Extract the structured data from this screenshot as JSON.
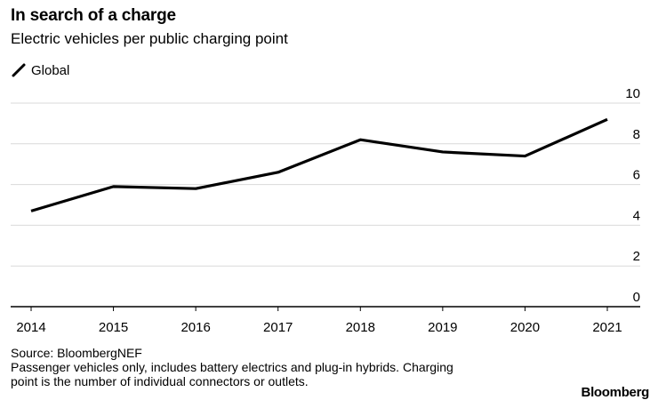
{
  "chart_data": {
    "type": "line",
    "title": "In search of a charge",
    "subtitle": "Electric vehicles per public charging point",
    "categories": [
      "2014",
      "2015",
      "2016",
      "2017",
      "2018",
      "2019",
      "2020",
      "2021"
    ],
    "series": [
      {
        "name": "Global",
        "values": [
          4.7,
          5.9,
          5.8,
          6.6,
          8.2,
          7.6,
          7.4,
          9.2
        ],
        "color": "#000000"
      }
    ],
    "yticks": [
      "0",
      "2",
      "4",
      "6",
      "8",
      "10"
    ],
    "ylim": [
      0,
      10
    ],
    "xlabel": "",
    "ylabel": "",
    "grid": true,
    "legend_position": "top-left",
    "axis_side": "right"
  },
  "footer": {
    "source": "Source: BloombergNEF",
    "note_line1": "Passenger vehicles only, includes battery electrics and plug-in hybrids. Charging",
    "note_line2": "point is the number of individual connectors or outlets."
  },
  "brand": "Bloomberg",
  "colors": {
    "line": "#000000",
    "grid": "#d9d9d9",
    "axis": "#000000",
    "text": "#000000"
  }
}
